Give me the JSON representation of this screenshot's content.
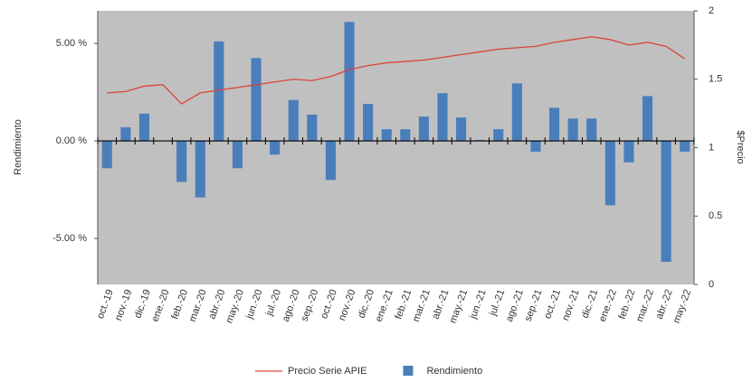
{
  "chart_data": {
    "type": "bar-line",
    "y_label": "Rendimiento",
    "y2_label": "$Precio",
    "categories": [
      "oct.-19",
      "nov.-19",
      "dic.-19",
      "ene.-20",
      "feb.-20",
      "mar.-20",
      "abr.-20",
      "may.-20",
      "jun.-20",
      "jul.-20",
      "ago.-20",
      "sep.-20",
      "oct.-20",
      "nov.-20",
      "dic.-20",
      "ene.-21",
      "feb.-21",
      "mar.-21",
      "abr.-21",
      "may.-21",
      "jun.-21",
      "jul.-21",
      "ago.-21",
      "sep.-21",
      "oct.-21",
      "nov.-21",
      "dic.-21",
      "ene.-22",
      "feb.-22",
      "mar.-22",
      "abr.-22",
      "may.-22"
    ],
    "series": [
      {
        "name": "Precio Serie APIE",
        "type": "line",
        "axis": "y2",
        "color": "#d9453a",
        "values": [
          1.4,
          1.41,
          1.45,
          1.46,
          1.32,
          1.4,
          1.42,
          1.44,
          1.46,
          1.48,
          1.5,
          1.49,
          1.52,
          1.57,
          1.6,
          1.62,
          1.63,
          1.64,
          1.66,
          1.68,
          1.7,
          1.72,
          1.73,
          1.74,
          1.77,
          1.79,
          1.81,
          1.79,
          1.75,
          1.77,
          1.74,
          1.65
        ]
      },
      {
        "name": "Rendimiento",
        "type": "bar",
        "color": "#4a7ebb",
        "values": [
          -1.4,
          0.7,
          1.4,
          0,
          -2.1,
          -2.9,
          5.1,
          -1.4,
          4.25,
          -0.7,
          2.1,
          1.35,
          -2.0,
          6.1,
          1.9,
          0.6,
          0.6,
          1.25,
          2.45,
          1.2,
          0.05,
          0.6,
          2.95,
          -0.55,
          1.7,
          1.15,
          1.15,
          -3.3,
          -1.1,
          2.3,
          -6.2,
          -0.55
        ]
      }
    ],
    "ylim": [
      -7.36,
      6.67
    ],
    "yticks": [
      {
        "value": -5,
        "label": "-5.00 %"
      },
      {
        "value": 0,
        "label": "0.00 %"
      },
      {
        "value": 5,
        "label": "5.00 %"
      }
    ],
    "y2lim": [
      0,
      2
    ],
    "y2ticks": [
      0,
      0.5,
      1,
      1.5,
      2
    ],
    "legend": "bottom"
  }
}
